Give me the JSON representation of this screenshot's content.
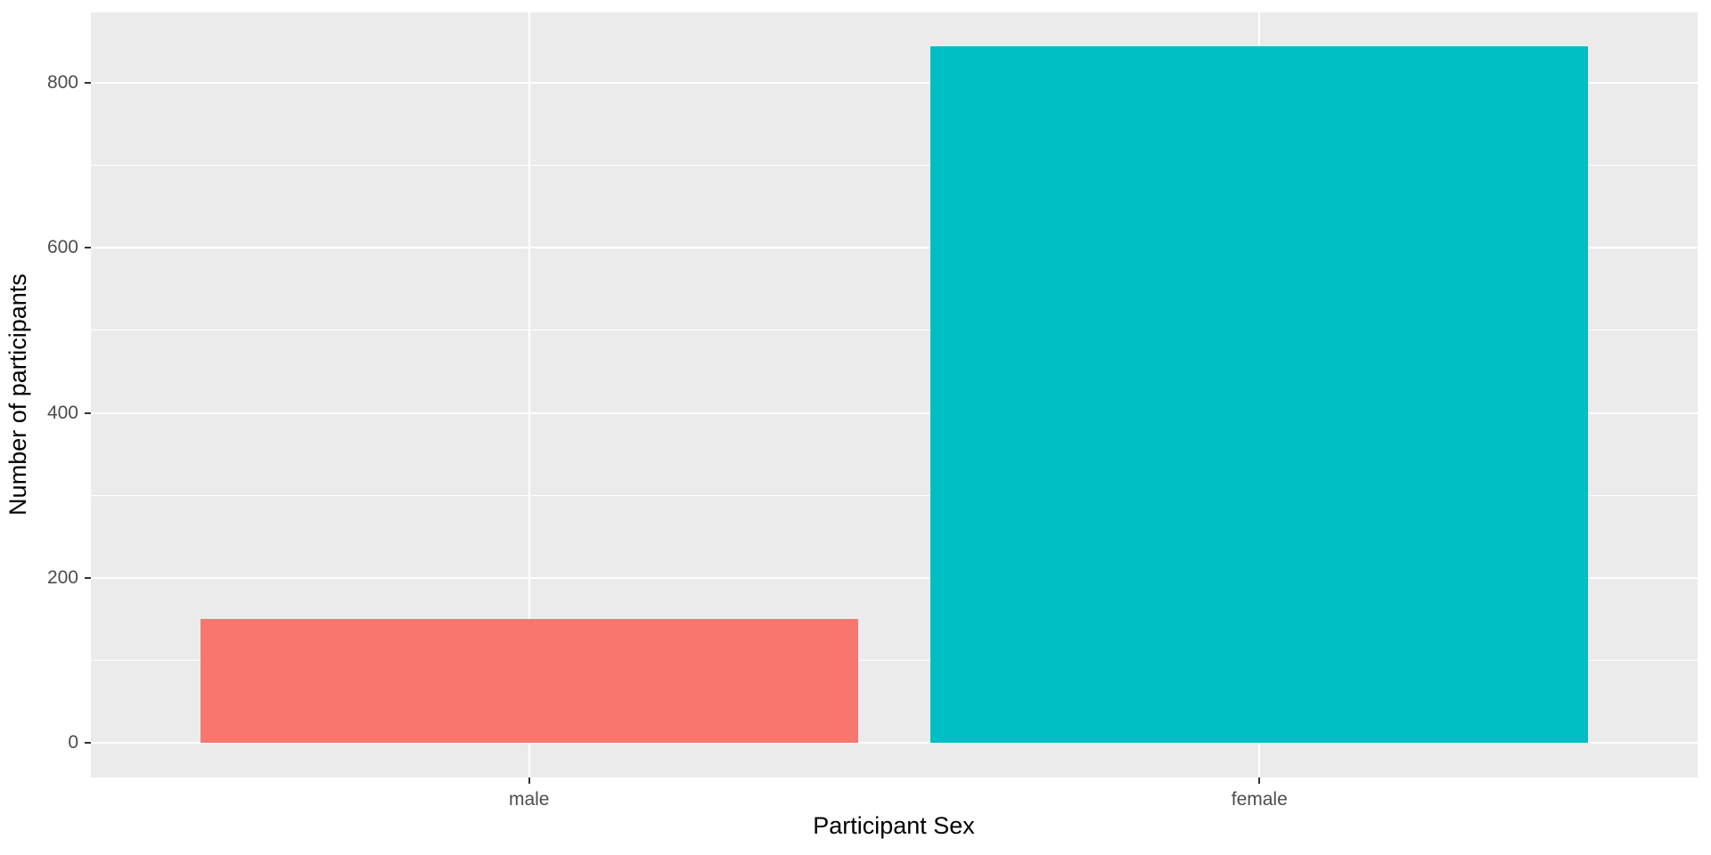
{
  "chart_data": {
    "type": "bar",
    "title": "",
    "xlabel": "Participant Sex",
    "ylabel": "Number of participants",
    "categories": [
      "male",
      "female"
    ],
    "values": [
      150,
      844
    ],
    "bar_colors": [
      "#F8766D",
      "#00BFC4"
    ],
    "ylim": [
      0,
      885
    ],
    "y_ticks": [
      0,
      200,
      400,
      600,
      800
    ],
    "y_minor_gridlines": [
      100,
      300,
      500,
      700
    ],
    "grid": "on",
    "legend_position": "none",
    "bar_width_fraction": 0.9,
    "theme": {
      "panel_background": "#EBEBEB",
      "grid_major_color": "#FFFFFF",
      "grid_minor_color": "#FFFFFF",
      "tick_label_color": "#4D4D4D",
      "tick_mark_color": "#333333",
      "axis_title_color": "#000000",
      "outer_background": "#FFFFFF"
    }
  }
}
